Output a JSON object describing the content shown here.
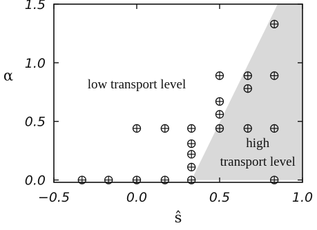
{
  "chart_data": {
    "type": "scatter",
    "xlabel": "ŝ",
    "ylabel": "α",
    "xlim": [
      -0.5,
      1.0
    ],
    "ylim": [
      -0.02,
      1.5
    ],
    "x_ticks": [
      -0.5,
      0.0,
      0.5,
      1.0
    ],
    "x_tick_labels": [
      "−0.5",
      "0.0",
      "0.5",
      "1.0"
    ],
    "y_ticks": [
      0.0,
      0.5,
      1.0,
      1.5
    ],
    "y_tick_labels": [
      "0.0",
      "0.5",
      "1.0",
      "1.5"
    ],
    "grid": false,
    "boundary_region": {
      "color": "#d9d9d9",
      "polygon": [
        [
          0.33,
          0.0
        ],
        [
          1.0,
          0.0
        ],
        [
          1.0,
          1.5
        ],
        [
          0.85,
          1.5
        ]
      ]
    },
    "points": [
      {
        "x": -0.33,
        "y": 0.0
      },
      {
        "x": -0.17,
        "y": 0.0
      },
      {
        "x": 0.0,
        "y": 0.0
      },
      {
        "x": 0.17,
        "y": 0.0
      },
      {
        "x": 0.33,
        "y": 0.0
      },
      {
        "x": 0.83,
        "y": 0.0
      },
      {
        "x": 0.33,
        "y": 0.11
      },
      {
        "x": 0.33,
        "y": 0.22
      },
      {
        "x": 0.33,
        "y": 0.31
      },
      {
        "x": 0.0,
        "y": 0.44
      },
      {
        "x": 0.17,
        "y": 0.44
      },
      {
        "x": 0.33,
        "y": 0.44
      },
      {
        "x": 0.5,
        "y": 0.44
      },
      {
        "x": 0.67,
        "y": 0.44
      },
      {
        "x": 0.83,
        "y": 0.44
      },
      {
        "x": 0.5,
        "y": 0.56
      },
      {
        "x": 0.5,
        "y": 0.67
      },
      {
        "x": 0.67,
        "y": 0.78
      },
      {
        "x": 0.5,
        "y": 0.89
      },
      {
        "x": 0.67,
        "y": 0.89
      },
      {
        "x": 0.83,
        "y": 0.89
      },
      {
        "x": 0.83,
        "y": 1.33
      }
    ],
    "marker": "circle-plus",
    "annotations": [
      {
        "id": "low",
        "text": "low transport level",
        "x": 0.0,
        "y": 0.78
      },
      {
        "id": "high1",
        "text": "high",
        "x": 0.73,
        "y": 0.28
      },
      {
        "id": "high2",
        "text": "transport level",
        "x": 0.73,
        "y": 0.12
      }
    ]
  }
}
